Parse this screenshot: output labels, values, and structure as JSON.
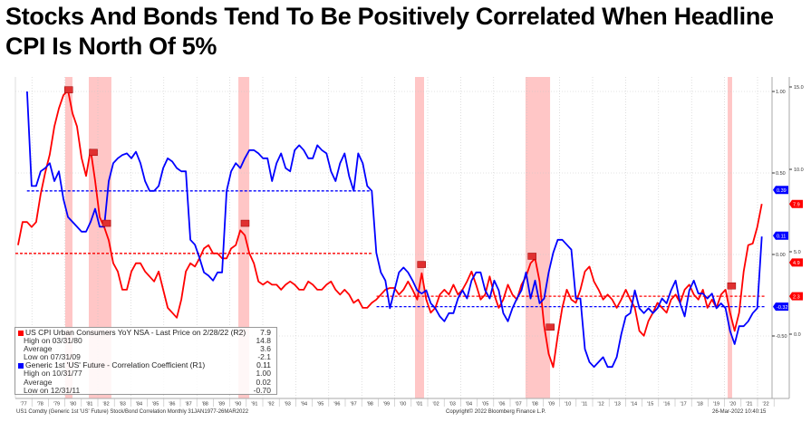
{
  "colors": {
    "cpi": "#ff0000",
    "corr": "#0000ff",
    "recession": "#ffb3b3",
    "grid": "#c8c8c8"
  },
  "chart_data": {
    "type": "line",
    "title": "Stocks And Bonds Tend To Be Positively Correlated When Headline CPI Is North Of 5%",
    "x_axis": {
      "unit": "year",
      "range": [
        1977.0,
        2022.5
      ],
      "tick_labels": [
        "'77",
        "'78",
        "'79",
        "'80",
        "'81",
        "'82",
        "'83",
        "'84",
        "'85",
        "'86",
        "'87",
        "'88",
        "'89",
        "'90",
        "'91",
        "'92",
        "'93",
        "'94",
        "'95",
        "'96",
        "'97",
        "'98",
        "'99",
        "'00",
        "'01",
        "'02",
        "'03",
        "'04",
        "'05",
        "'06",
        "'07",
        "'08",
        "'09",
        "'10",
        "'11",
        "'12",
        "'13",
        "'14",
        "'15",
        "'16",
        "'17",
        "'18",
        "'19",
        "'20",
        "'21",
        "'22"
      ],
      "grid": "every 2 years"
    },
    "left_axis_r1": {
      "range": [
        -0.9,
        1.1
      ],
      "ticks": [
        "1.00",
        "0.50",
        "0.00",
        "-0.50"
      ],
      "tick_values": [
        1.0,
        0.5,
        0.0,
        -0.5
      ]
    },
    "right_axis_r2": {
      "range": [
        -3.3,
        15.5
      ],
      "ticks": [
        "15.0",
        "10.0",
        "5.0",
        "0.0"
      ],
      "tick_values": [
        15.0,
        10.0,
        5.0,
        0.0
      ]
    },
    "series": [
      {
        "name": "US CPI Urban Consumers YoY NSA",
        "axis": "R2",
        "color": "#ff0000",
        "x_start": 1977.16,
        "x_step": 0.275,
        "values": [
          5.4,
          6.8,
          6.8,
          6.5,
          6.8,
          8.5,
          9.8,
          10.9,
          12.6,
          13.7,
          14.5,
          14.8,
          13.4,
          12.6,
          10.7,
          9.6,
          11.2,
          9.3,
          7.1,
          6.5,
          5.7,
          4.3,
          3.8,
          2.7,
          2.7,
          3.8,
          4.3,
          4.3,
          3.8,
          3.5,
          3.2,
          3.8,
          2.7,
          1.6,
          1.3,
          1.0,
          2.1,
          3.8,
          4.3,
          4.1,
          4.6,
          5.2,
          5.4,
          4.9,
          4.9,
          4.6,
          4.6,
          5.2,
          5.4,
          6.3,
          6.0,
          4.9,
          4.3,
          3.2,
          3.0,
          3.2,
          3.0,
          3.0,
          2.7,
          3.0,
          3.2,
          3.0,
          2.7,
          2.7,
          3.2,
          3.0,
          2.7,
          2.7,
          3.0,
          3.2,
          2.7,
          2.4,
          2.7,
          2.4,
          1.9,
          2.1,
          1.6,
          1.6,
          1.9,
          2.1,
          2.4,
          2.7,
          2.8,
          2.8,
          2.4,
          2.7,
          3.2,
          2.7,
          2.1,
          3.7,
          2.1,
          1.3,
          1.6,
          2.4,
          2.7,
          2.4,
          3.0,
          2.4,
          2.7,
          3.2,
          3.8,
          3.0,
          2.1,
          2.4,
          3.5,
          2.4,
          1.6,
          2.1,
          3.0,
          2.4,
          2.1,
          3.0,
          3.5,
          4.3,
          4.6,
          3.2,
          0.5,
          -1.2,
          -2.0,
          -0.1,
          1.6,
          2.7,
          2.1,
          1.9,
          2.7,
          3.8,
          4.1,
          3.2,
          2.7,
          2.1,
          2.4,
          2.1,
          1.6,
          2.1,
          2.7,
          2.1,
          1.6,
          0.2,
          -0.1,
          0.8,
          1.3,
          1.9,
          1.6,
          1.3,
          2.1,
          2.4,
          1.9,
          2.7,
          3.0,
          2.4,
          2.1,
          2.7,
          1.6,
          2.1,
          1.6,
          2.4,
          2.7,
          1.3,
          0.2,
          1.3,
          3.8,
          5.4,
          5.5,
          6.5,
          7.9
        ],
        "last_label": "7.9",
        "average_label": "4.9",
        "average_label_2": "2.3",
        "period_averages": [
          {
            "from": 1977.0,
            "to": 1998.7,
            "value": 4.9
          },
          {
            "from": 1998.9,
            "to": 2022.5,
            "value": 2.3
          }
        ]
      },
      {
        "name": "Generic 1st 'US' Future - Correlation Coefficient",
        "axis": "R1",
        "color": "#0000ff",
        "x_start": 1977.71,
        "x_step": 0.275,
        "values": [
          1.0,
          0.42,
          0.42,
          0.51,
          0.53,
          0.56,
          0.45,
          0.51,
          0.34,
          0.23,
          0.2,
          0.17,
          0.14,
          0.14,
          0.2,
          0.28,
          0.17,
          0.17,
          0.45,
          0.56,
          0.59,
          0.61,
          0.62,
          0.59,
          0.63,
          0.56,
          0.45,
          0.39,
          0.39,
          0.42,
          0.53,
          0.59,
          0.57,
          0.53,
          0.51,
          0.51,
          0.09,
          0.06,
          -0.02,
          -0.11,
          -0.13,
          -0.16,
          -0.11,
          -0.11,
          0.39,
          0.51,
          0.56,
          0.53,
          0.59,
          0.64,
          0.64,
          0.62,
          0.59,
          0.59,
          0.45,
          0.56,
          0.62,
          0.53,
          0.51,
          0.64,
          0.67,
          0.64,
          0.59,
          0.59,
          0.67,
          0.64,
          0.62,
          0.51,
          0.45,
          0.56,
          0.62,
          0.48,
          0.39,
          0.62,
          0.56,
          0.42,
          0.39,
          0.01,
          -0.11,
          -0.16,
          -0.33,
          -0.22,
          -0.11,
          -0.08,
          -0.11,
          -0.16,
          -0.22,
          -0.24,
          -0.22,
          -0.3,
          -0.33,
          -0.38,
          -0.41,
          -0.36,
          -0.36,
          -0.27,
          -0.22,
          -0.27,
          -0.16,
          -0.11,
          -0.11,
          -0.22,
          -0.27,
          -0.16,
          -0.22,
          -0.36,
          -0.41,
          -0.33,
          -0.27,
          -0.22,
          -0.11,
          -0.27,
          -0.16,
          -0.3,
          -0.27,
          -0.11,
          0.01,
          0.09,
          0.09,
          0.06,
          0.03,
          -0.27,
          -0.27,
          -0.58,
          -0.66,
          -0.69,
          -0.66,
          -0.63,
          -0.69,
          -0.69,
          -0.63,
          -0.49,
          -0.38,
          -0.36,
          -0.22,
          -0.33,
          -0.36,
          -0.33,
          -0.36,
          -0.33,
          -0.27,
          -0.3,
          -0.22,
          -0.16,
          -0.3,
          -0.38,
          -0.22,
          -0.16,
          -0.24,
          -0.24,
          -0.27,
          -0.24,
          -0.33,
          -0.3,
          -0.33,
          -0.47,
          -0.55,
          -0.44,
          -0.44,
          -0.41,
          -0.36,
          -0.33,
          0.11
        ],
        "last_label": "0.11",
        "average_label": "0.39",
        "average_label_2": "-0.32",
        "period_averages": [
          {
            "from": 1977.7,
            "to": 1998.6,
            "value": 0.39
          },
          {
            "from": 1998.9,
            "to": 2022.5,
            "value": -0.32
          }
        ]
      }
    ],
    "recessions": [
      [
        1980.02,
        1980.46
      ],
      [
        1981.45,
        1982.82
      ],
      [
        1990.52,
        1991.18
      ],
      [
        2001.23,
        2001.78
      ],
      [
        2007.93,
        2009.42
      ],
      [
        2020.19,
        2020.46
      ]
    ],
    "event_markers_cpi": [
      [
        1980.2,
        14.8
      ],
      [
        1981.7,
        11.0
      ],
      [
        1982.5,
        6.7
      ],
      [
        1990.9,
        6.7
      ],
      [
        2001.6,
        4.2
      ],
      [
        2008.3,
        4.7
      ],
      [
        2009.4,
        0.4
      ],
      [
        2020.4,
        2.9
      ]
    ],
    "legend": {
      "placement": "bottom-left",
      "cpi": {
        "label": "US CPI Urban Consumers YoY NSA - Last Price on 2/28/22 (R2)",
        "value": "7.9",
        "rows": [
          {
            "label": "High on 03/31/80",
            "value": "14.8"
          },
          {
            "label": "Average",
            "value": "3.6"
          },
          {
            "label": "Low on 07/31/09",
            "value": "-2.1"
          }
        ]
      },
      "corr": {
        "label": "Generic 1st 'US' Future - Correlation Coefficient (R1)",
        "value": "0.11",
        "rows": [
          {
            "label": "High on 10/31/77",
            "value": "1.00"
          },
          {
            "label": "Average",
            "value": "0.02"
          },
          {
            "label": "Low on 12/31/11",
            "value": "-0.70"
          }
        ]
      }
    }
  },
  "footer": {
    "left": "US1 Comdty (Generic 1st 'US' Future) Stock/Bond Correlation  Monthly 31JAN1977-26MAR2022",
    "middle": "Copyright© 2022 Bloomberg Finance L.P.",
    "right": "26-Mar-2022 10:40:15"
  }
}
